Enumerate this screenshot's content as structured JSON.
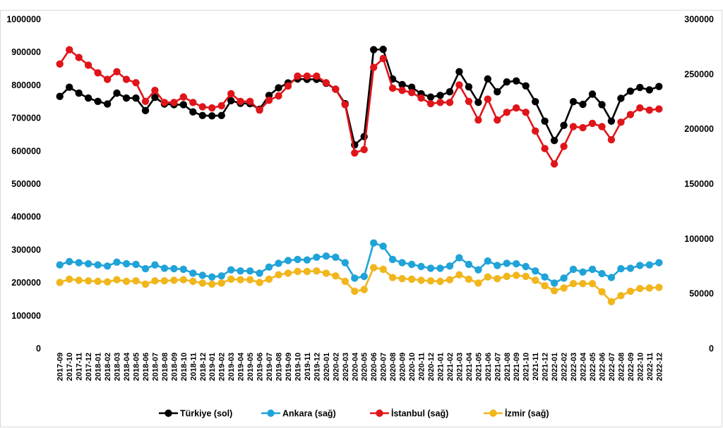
{
  "chart_data": {
    "type": "line",
    "left_axis": {
      "ylim": [
        0,
        1000000
      ],
      "ticks": [
        "0",
        "100000",
        "200000",
        "300000",
        "400000",
        "500000",
        "600000",
        "700000",
        "800000",
        "900000",
        "1000000"
      ]
    },
    "right_axis": {
      "ylim": [
        0,
        300000
      ],
      "ticks": [
        "0",
        "50000",
        "100000",
        "150000",
        "200000",
        "250000",
        "300000"
      ]
    },
    "grid": false,
    "legend_position": "bottom",
    "categories": [
      "2017-09",
      "2017-10",
      "2017-11",
      "2017-12",
      "2018-01",
      "2018-02",
      "2018-03",
      "2018-04",
      "2018-05",
      "2018-06",
      "2018-07",
      "2018-08",
      "2018-09",
      "2018-10",
      "2018-11",
      "2018-12",
      "2019-01",
      "2019-02",
      "2019-03",
      "2019-04",
      "2019-05",
      "2019-06",
      "2019-07",
      "2019-08",
      "2019-09",
      "2019-10",
      "2019-11",
      "2019-12",
      "2020-01",
      "2020-02",
      "2020-03",
      "2020-04",
      "2020-05",
      "2020-06",
      "2020-07",
      "2020-08",
      "2020-09",
      "2020-10",
      "2020-11",
      "2020-12",
      "2021-01",
      "2021-02",
      "2021-03",
      "2021-04",
      "2021-05",
      "2021-06",
      "2021-07",
      "2021-08",
      "2021-09",
      "2021-10",
      "2021-11",
      "2021-12",
      "2022-01",
      "2022-02",
      "2022-03",
      "2022-04",
      "2022-05",
      "2022-06",
      "2022-07",
      "2022-08",
      "2022-09",
      "2022-10",
      "2022-11",
      "2022-12"
    ],
    "series": [
      {
        "name": "Türkiye (sol)",
        "axis": "left",
        "color": "#000000",
        "values": [
          765000,
          793000,
          775000,
          760000,
          750000,
          742000,
          775000,
          760000,
          760000,
          722000,
          762000,
          742000,
          740000,
          740000,
          718000,
          707000,
          706000,
          707000,
          752000,
          744000,
          743000,
          726000,
          768000,
          791000,
          806000,
          818000,
          817000,
          817000,
          805000,
          787000,
          743000,
          618000,
          643000,
          907000,
          908000,
          818000,
          801000,
          793000,
          773000,
          763000,
          768000,
          779000,
          840000,
          794000,
          747000,
          818000,
          779000,
          809000,
          812000,
          797000,
          749000,
          690000,
          631000,
          677000,
          749000,
          741000,
          772000,
          740000,
          690000,
          759000,
          781000,
          792000,
          785000,
          795000
        ]
      },
      {
        "name": "Ankara (sağ)",
        "axis": "right",
        "color": "#1fa3d8",
        "values": [
          76000,
          79000,
          78000,
          77000,
          76000,
          75000,
          78500,
          77000,
          76500,
          72500,
          76000,
          73000,
          72500,
          72000,
          68500,
          66500,
          65000,
          66000,
          71500,
          70500,
          70500,
          68500,
          74000,
          77500,
          80000,
          81000,
          80500,
          83000,
          84000,
          83000,
          78000,
          64000,
          65500,
          96000,
          93000,
          81000,
          78000,
          76500,
          74500,
          73000,
          73000,
          75000,
          82500,
          76500,
          71500,
          79500,
          75500,
          77500,
          77000,
          74500,
          70500,
          65000,
          59500,
          64000,
          72000,
          69500,
          72000,
          68000,
          64500,
          72500,
          73000,
          75500,
          76000,
          78000
        ]
      },
      {
        "name": "İstanbul (sağ)",
        "axis": "right",
        "color": "#e0151a",
        "values": [
          259000,
          272000,
          265000,
          258000,
          251000,
          245000,
          252000,
          245000,
          242000,
          225000,
          235000,
          224000,
          224000,
          229000,
          224000,
          220000,
          219000,
          221000,
          232000,
          225000,
          225000,
          217000,
          226000,
          230000,
          239000,
          248000,
          248000,
          248000,
          242000,
          236000,
          222000,
          178000,
          181000,
          256000,
          264000,
          237000,
          235000,
          233000,
          228000,
          223000,
          224000,
          224000,
          240000,
          225000,
          208000,
          227000,
          208000,
          215000,
          219000,
          215000,
          198000,
          182000,
          168000,
          184000,
          202000,
          201000,
          205000,
          202000,
          190000,
          206000,
          213000,
          219000,
          217000,
          218000
        ]
      },
      {
        "name": "İzmir (sağ)",
        "axis": "right",
        "color": "#f1b61c",
        "values": [
          60000,
          63000,
          62000,
          61500,
          61000,
          60500,
          62500,
          61000,
          61500,
          58500,
          61500,
          61500,
          62000,
          62500,
          61000,
          59500,
          58500,
          59500,
          63000,
          62500,
          62500,
          60000,
          63000,
          67000,
          68500,
          70000,
          70000,
          70500,
          68500,
          66000,
          61000,
          52000,
          53500,
          73500,
          72000,
          64500,
          63500,
          63000,
          62000,
          61500,
          61000,
          62500,
          67000,
          63000,
          59500,
          65000,
          63500,
          65500,
          66500,
          65500,
          62000,
          57000,
          52500,
          55000,
          59000,
          59000,
          59000,
          51500,
          42500,
          48000,
          52000,
          54500,
          55000,
          55500
        ]
      }
    ]
  }
}
